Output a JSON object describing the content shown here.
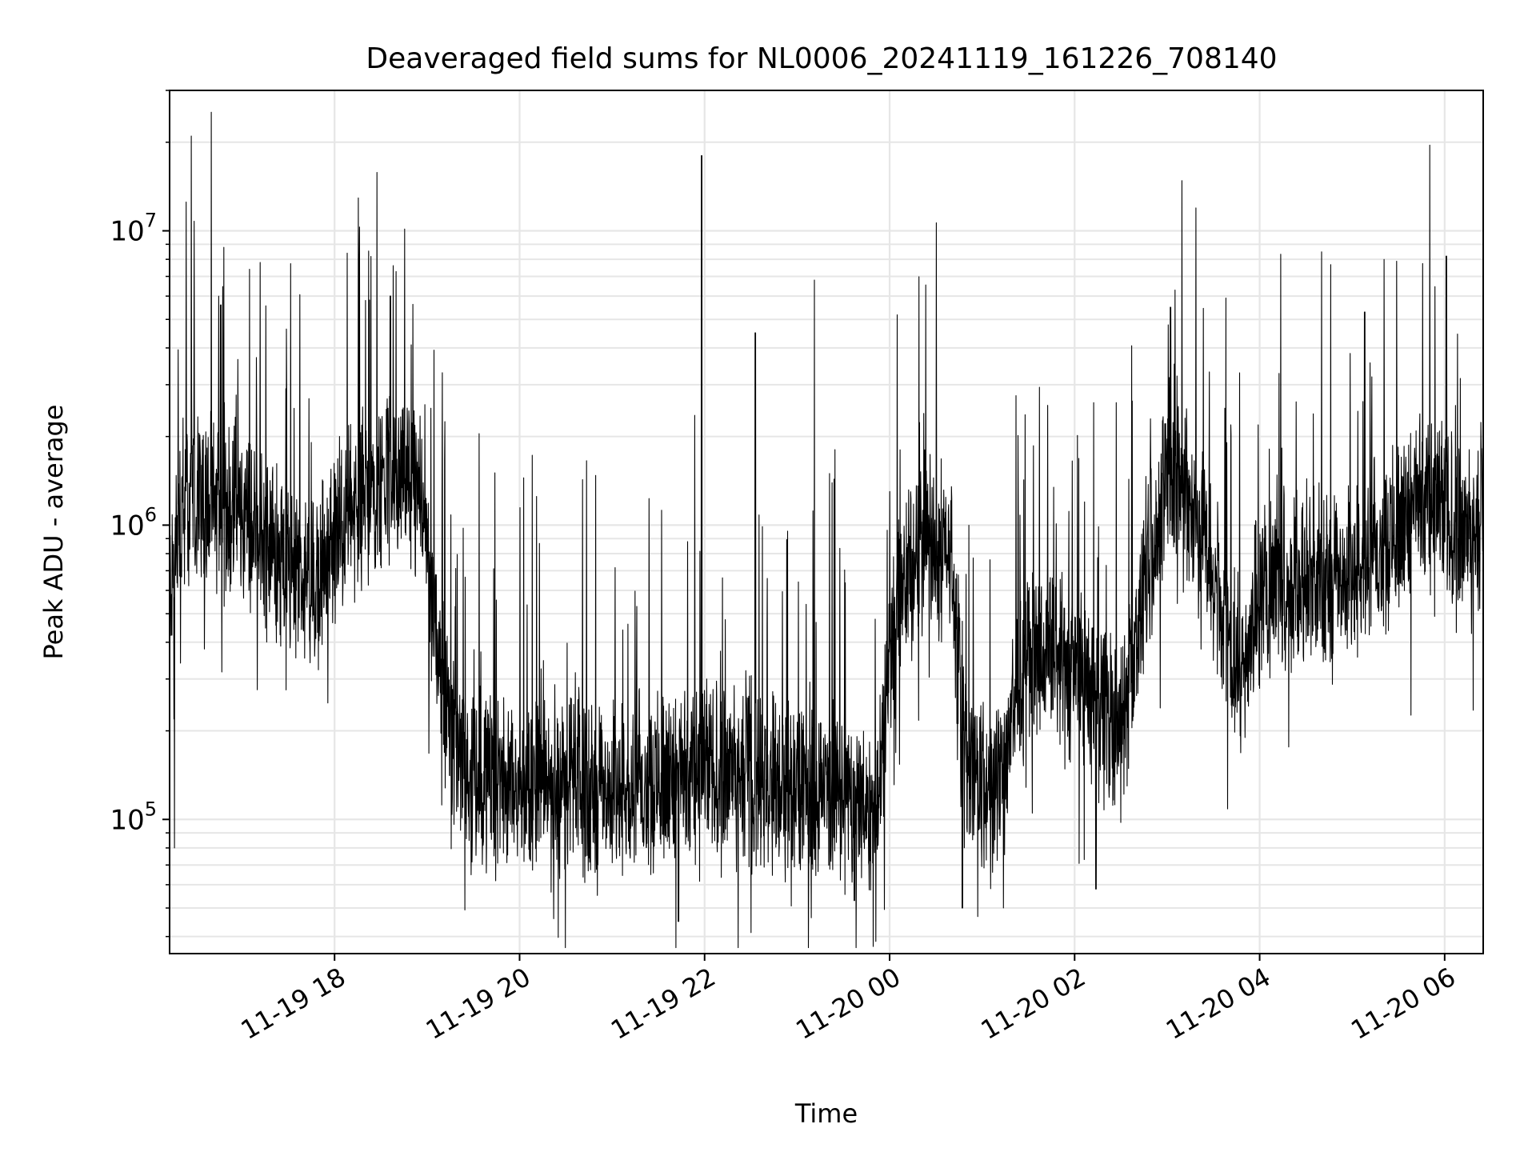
{
  "chart_data": {
    "type": "line",
    "title": "Deaveraged field sums for NL0006_20241119_161226_708140",
    "xlabel": "Time",
    "ylabel": "Peak ADU - average",
    "y_scale": "log",
    "x_range": [
      "2024-11-19 16:13",
      "2024-11-20 06:25"
    ],
    "ylim": [
      35000,
      30000000
    ],
    "x_ticks": [
      "11-19 18",
      "11-19 20",
      "11-19 22",
      "11-20 00",
      "11-20 02",
      "11-20 04",
      "11-20 06"
    ],
    "y_ticks": [
      {
        "value": 100000,
        "base": "10",
        "exp": "5"
      },
      {
        "value": 1000000,
        "base": "10",
        "exp": "6"
      },
      {
        "value": 10000000,
        "base": "10",
        "exp": "7"
      }
    ],
    "grid": true,
    "line_color": "#000000",
    "series": [
      {
        "time": [
          "2024-11-19 16:13",
          "2024-11-19 16:20",
          "2024-11-19 16:30",
          "2024-11-19 16:45",
          "2024-11-19 17:00",
          "2024-11-19 17:15",
          "2024-11-19 17:30",
          "2024-11-19 17:45",
          "2024-11-19 18:00",
          "2024-11-19 18:15",
          "2024-11-19 18:30",
          "2024-11-19 18:45",
          "2024-11-19 18:55",
          "2024-11-19 19:05",
          "2024-11-19 19:15",
          "2024-11-19 19:30",
          "2024-11-19 20:00",
          "2024-11-19 20:30",
          "2024-11-19 21:00",
          "2024-11-19 21:30",
          "2024-11-19 22:00",
          "2024-11-19 22:30",
          "2024-11-19 23:00",
          "2024-11-19 23:30",
          "2024-11-19 23:50",
          "2024-11-20 00:05",
          "2024-11-20 00:20",
          "2024-11-20 00:40",
          "2024-11-20 00:50",
          "2024-11-20 01:10",
          "2024-11-20 01:30",
          "2024-11-20 01:50",
          "2024-11-20 02:10",
          "2024-11-20 02:30",
          "2024-11-20 02:50",
          "2024-11-20 03:00",
          "2024-11-20 03:15",
          "2024-11-20 03:30",
          "2024-11-20 03:45",
          "2024-11-20 04:00",
          "2024-11-20 04:30",
          "2024-11-20 05:00",
          "2024-11-20 05:30",
          "2024-11-20 05:45",
          "2024-11-20 06:00",
          "2024-11-20 06:15",
          "2024-11-20 06:25"
        ],
        "values": [
          600000,
          1000000,
          1300000,
          1100000,
          1100000,
          900000,
          700000,
          600000,
          900000,
          1200000,
          1400000,
          1500000,
          1200000,
          500000,
          200000,
          140000,
          130000,
          130000,
          130000,
          140000,
          150000,
          140000,
          130000,
          120000,
          110000,
          500000,
          900000,
          800000,
          150000,
          120000,
          400000,
          350000,
          250000,
          200000,
          800000,
          1500000,
          1200000,
          700000,
          300000,
          600000,
          650000,
          700000,
          1000000,
          1300000,
          1100000,
          900000,
          1000000
        ]
      }
    ],
    "spikes": [
      {
        "time": "2024-11-19 16:27",
        "value": 21000000
      },
      {
        "time": "2024-11-19 16:46",
        "value": 5600000
      },
      {
        "time": "2024-11-19 17:05",
        "value": 7400000
      },
      {
        "time": "2024-11-19 18:08",
        "value": 8400000
      },
      {
        "time": "2024-11-19 18:20",
        "value": 5800000
      },
      {
        "time": "2024-11-19 18:36",
        "value": 6000000
      },
      {
        "time": "2024-11-19 21:58",
        "value": 18000000
      },
      {
        "time": "2024-11-19 22:33",
        "value": 4500000
      },
      {
        "time": "2024-11-19 23:11",
        "value": 6800000
      },
      {
        "time": "2024-11-20 03:02",
        "value": 5500000
      },
      {
        "time": "2024-11-20 05:08",
        "value": 5300000
      },
      {
        "time": "2024-11-20 06:01",
        "value": 8200000
      }
    ],
    "dips": [
      {
        "time": "2024-11-19 16:16",
        "value": 80000
      },
      {
        "time": "2024-11-19 21:43",
        "value": 45000
      },
      {
        "time": "2024-11-19 23:37",
        "value": 53000
      },
      {
        "time": "2024-11-20 00:47",
        "value": 50000
      },
      {
        "time": "2024-11-20 02:14",
        "value": 58000
      }
    ]
  }
}
